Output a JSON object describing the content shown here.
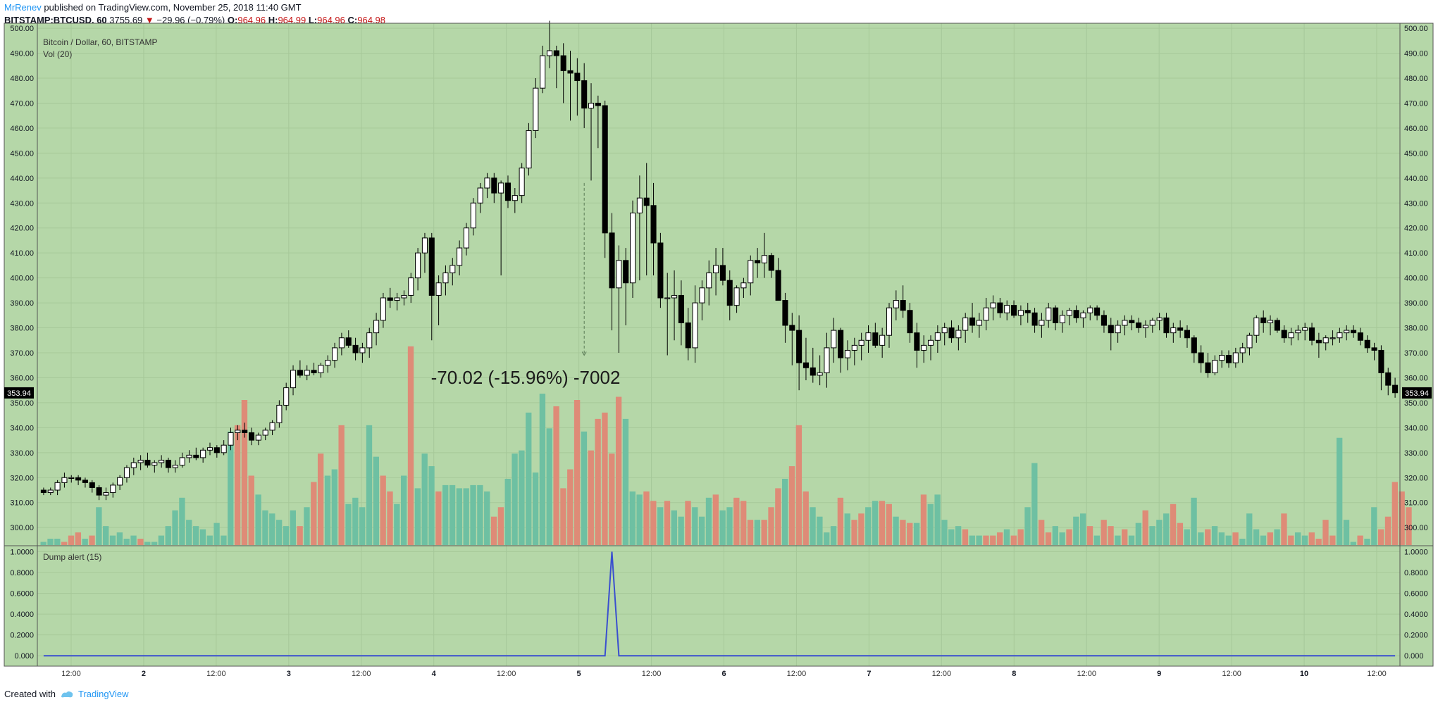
{
  "header": {
    "user": "MrRenev",
    "published": "published on TradingView.com, November 25, 2018 11:40 GMT",
    "symbol": "BITSTAMP:BTCUSD, 60",
    "price": "3755.69",
    "arrow": "▼",
    "change": "−29.96 (−0.79%)",
    "o_label": "O:",
    "o_value": "964.96",
    "h_label": "H:",
    "h_value": "964.99",
    "l_label": "L:",
    "l_value": "964.96",
    "c_label": "C:",
    "c_value": "964.98"
  },
  "footer": {
    "created": "Created with",
    "brand": "TradingView",
    "logo_icon": "tradingview-logo-icon"
  },
  "colors": {
    "background": "#b5d7a8",
    "grid": "#a6c899",
    "up_volume": "#6ec0a2",
    "down_volume": "#de8b77",
    "candle_up": "#ffffff",
    "candle_down": "#000000",
    "indicator_line": "#3a4fcf",
    "price_tag": "#000000"
  },
  "chart_data": {
    "type": "candlestick",
    "title": "Bitcoin / Dollar, 60, BITSTAMP",
    "volume_label": "Vol (20)",
    "indicator_label": "Dump alert (15)",
    "last_price_tag": "353.94",
    "annotation": "-70.02 (-15.96%) -7002",
    "price_axis": {
      "ylim": [
        293,
        502
      ],
      "ticks": [
        "500.00",
        "490.00",
        "480.00",
        "470.00",
        "460.00",
        "450.00",
        "440.00",
        "430.00",
        "420.00",
        "410.00",
        "400.00",
        "390.00",
        "380.00",
        "370.00",
        "360.00",
        "350.00",
        "340.00",
        "330.00",
        "320.00",
        "310.00",
        "300.00"
      ]
    },
    "indicator_axis": {
      "ylim": [
        -0.1,
        1.05
      ],
      "ticks": [
        "1.0000",
        "0.8000",
        "0.6000",
        "0.4000",
        "0.2000",
        "0.000"
      ]
    },
    "x_ticks": [
      "12:00",
      "2",
      "12:00",
      "3",
      "12:00",
      "4",
      "12:00",
      "5",
      "12:00",
      "6",
      "12:00",
      "7",
      "12:00",
      "8",
      "12:00",
      "9",
      "12:00",
      "10",
      "12:00"
    ],
    "candles_ohlc": [
      [
        315,
        316,
        313,
        314
      ],
      [
        314,
        316,
        313,
        315
      ],
      [
        315,
        319,
        313,
        318
      ],
      [
        318,
        322,
        316,
        320
      ],
      [
        320,
        321,
        318,
        320
      ],
      [
        320,
        321,
        317,
        319
      ],
      [
        319,
        320,
        316,
        318
      ],
      [
        318,
        319,
        314,
        316
      ],
      [
        316,
        317,
        311,
        313
      ],
      [
        313,
        316,
        311,
        314
      ],
      [
        314,
        318,
        312,
        317
      ],
      [
        317,
        321,
        315,
        320
      ],
      [
        320,
        325,
        318,
        324
      ],
      [
        324,
        328,
        321,
        326
      ],
      [
        326,
        329,
        323,
        327
      ],
      [
        327,
        330,
        324,
        325
      ],
      [
        325,
        327,
        322,
        326
      ],
      [
        326,
        329,
        324,
        327
      ],
      [
        327,
        328,
        322,
        324
      ],
      [
        324,
        327,
        322,
        325
      ],
      [
        325,
        330,
        324,
        328
      ],
      [
        328,
        331,
        326,
        329
      ],
      [
        329,
        332,
        327,
        328
      ],
      [
        328,
        332,
        326,
        331
      ],
      [
        331,
        334,
        329,
        332
      ],
      [
        332,
        333,
        328,
        330
      ],
      [
        330,
        335,
        329,
        333
      ],
      [
        333,
        340,
        331,
        338
      ],
      [
        338,
        341,
        335,
        339
      ],
      [
        339,
        342,
        336,
        338
      ],
      [
        338,
        340,
        333,
        335
      ],
      [
        335,
        338,
        333,
        337
      ],
      [
        337,
        340,
        335,
        339
      ],
      [
        339,
        343,
        337,
        342
      ],
      [
        342,
        351,
        340,
        349
      ],
      [
        349,
        358,
        347,
        356
      ],
      [
        356,
        365,
        353,
        363
      ],
      [
        363,
        367,
        360,
        361
      ],
      [
        361,
        365,
        359,
        363
      ],
      [
        363,
        366,
        361,
        362
      ],
      [
        362,
        366,
        360,
        365
      ],
      [
        365,
        369,
        362,
        367
      ],
      [
        367,
        374,
        364,
        372
      ],
      [
        372,
        378,
        369,
        376
      ],
      [
        376,
        379,
        372,
        373
      ],
      [
        373,
        376,
        367,
        370
      ],
      [
        370,
        374,
        366,
        372
      ],
      [
        372,
        380,
        368,
        378
      ],
      [
        378,
        386,
        373,
        383
      ],
      [
        383,
        394,
        380,
        392
      ],
      [
        392,
        396,
        388,
        391
      ],
      [
        391,
        394,
        387,
        392
      ],
      [
        392,
        395,
        389,
        393
      ],
      [
        393,
        402,
        390,
        400
      ],
      [
        400,
        412,
        395,
        410
      ],
      [
        410,
        418,
        402,
        416
      ],
      [
        416,
        418,
        375,
        393
      ],
      [
        393,
        401,
        381,
        398
      ],
      [
        398,
        405,
        393,
        402
      ],
      [
        402,
        408,
        397,
        405
      ],
      [
        405,
        415,
        401,
        412
      ],
      [
        412,
        422,
        409,
        420
      ],
      [
        420,
        432,
        417,
        430
      ],
      [
        430,
        438,
        426,
        436
      ],
      [
        436,
        442,
        432,
        440
      ],
      [
        440,
        442,
        430,
        434
      ],
      [
        434,
        439,
        401,
        438
      ],
      [
        438,
        441,
        428,
        431
      ],
      [
        431,
        436,
        426,
        433
      ],
      [
        433,
        446,
        430,
        444
      ],
      [
        444,
        462,
        441,
        459
      ],
      [
        459,
        480,
        456,
        476
      ],
      [
        476,
        493,
        474,
        489
      ],
      [
        489,
        503,
        484,
        491
      ],
      [
        491,
        493,
        476,
        489
      ],
      [
        489,
        494,
        470,
        483
      ],
      [
        483,
        491,
        463,
        482
      ],
      [
        482,
        488,
        465,
        479
      ],
      [
        479,
        486,
        460,
        468
      ],
      [
        468,
        478,
        439,
        470
      ],
      [
        470,
        473,
        452,
        469
      ],
      [
        469,
        471,
        408,
        418
      ],
      [
        418,
        426,
        379,
        396
      ],
      [
        396,
        413,
        370,
        407
      ],
      [
        407,
        412,
        381,
        398
      ],
      [
        398,
        431,
        392,
        426
      ],
      [
        426,
        441,
        399,
        432
      ],
      [
        432,
        446,
        401,
        429
      ],
      [
        429,
        438,
        401,
        414
      ],
      [
        414,
        418,
        388,
        392
      ],
      [
        392,
        402,
        369,
        392
      ],
      [
        392,
        403,
        375,
        393
      ],
      [
        393,
        399,
        373,
        382
      ],
      [
        382,
        388,
        367,
        372
      ],
      [
        372,
        397,
        366,
        390
      ],
      [
        390,
        399,
        383,
        396
      ],
      [
        396,
        407,
        389,
        402
      ],
      [
        402,
        412,
        393,
        405
      ],
      [
        405,
        412,
        397,
        399
      ],
      [
        399,
        403,
        383,
        389
      ],
      [
        389,
        397,
        386,
        396
      ],
      [
        396,
        400,
        392,
        398
      ],
      [
        398,
        409,
        393,
        407
      ],
      [
        407,
        412,
        400,
        406
      ],
      [
        406,
        418,
        400,
        409
      ],
      [
        409,
        410,
        400,
        403
      ],
      [
        403,
        408,
        393,
        391
      ],
      [
        391,
        394,
        374,
        381
      ],
      [
        381,
        386,
        365,
        379
      ],
      [
        379,
        385,
        355,
        366
      ],
      [
        366,
        376,
        359,
        364
      ],
      [
        364,
        372,
        358,
        361
      ],
      [
        361,
        369,
        357,
        362
      ],
      [
        362,
        378,
        356,
        372
      ],
      [
        372,
        384,
        366,
        379
      ],
      [
        379,
        380,
        362,
        368
      ],
      [
        368,
        375,
        363,
        371
      ],
      [
        371,
        376,
        365,
        373
      ],
      [
        373,
        378,
        367,
        375
      ],
      [
        375,
        381,
        370,
        378
      ],
      [
        378,
        382,
        372,
        373
      ],
      [
        373,
        380,
        368,
        377
      ],
      [
        377,
        390,
        372,
        388
      ],
      [
        388,
        395,
        383,
        391
      ],
      [
        391,
        397,
        384,
        387
      ],
      [
        387,
        390,
        374,
        378
      ],
      [
        378,
        382,
        364,
        371
      ],
      [
        371,
        377,
        366,
        373
      ],
      [
        373,
        377,
        367,
        375
      ],
      [
        375,
        381,
        370,
        378
      ],
      [
        378,
        382,
        373,
        380
      ],
      [
        380,
        383,
        374,
        376
      ],
      [
        376,
        381,
        371,
        379
      ],
      [
        379,
        386,
        374,
        384
      ],
      [
        384,
        390,
        378,
        381
      ],
      [
        381,
        386,
        376,
        383
      ],
      [
        383,
        392,
        379,
        388
      ],
      [
        388,
        393,
        383,
        390
      ],
      [
        390,
        392,
        384,
        386
      ],
      [
        386,
        391,
        383,
        389
      ],
      [
        389,
        391,
        384,
        385
      ],
      [
        385,
        389,
        381,
        387
      ],
      [
        387,
        390,
        382,
        386
      ],
      [
        386,
        388,
        378,
        381
      ],
      [
        381,
        386,
        376,
        383
      ],
      [
        383,
        390,
        380,
        388
      ],
      [
        388,
        389,
        379,
        382
      ],
      [
        382,
        387,
        378,
        385
      ],
      [
        385,
        388,
        381,
        387
      ],
      [
        387,
        389,
        382,
        384
      ],
      [
        384,
        387,
        380,
        386
      ],
      [
        386,
        389,
        383,
        388
      ],
      [
        388,
        389,
        383,
        385
      ],
      [
        385,
        387,
        378,
        381
      ],
      [
        381,
        384,
        371,
        378
      ],
      [
        378,
        383,
        374,
        381
      ],
      [
        381,
        385,
        377,
        383
      ],
      [
        383,
        385,
        379,
        382
      ],
      [
        382,
        384,
        378,
        380
      ],
      [
        380,
        383,
        376,
        381
      ],
      [
        381,
        384,
        378,
        383
      ],
      [
        383,
        386,
        379,
        384
      ],
      [
        384,
        386,
        376,
        378
      ],
      [
        378,
        382,
        374,
        380
      ],
      [
        380,
        383,
        376,
        379
      ],
      [
        379,
        381,
        372,
        376
      ],
      [
        376,
        377,
        366,
        370
      ],
      [
        370,
        373,
        362,
        366
      ],
      [
        366,
        370,
        360,
        362
      ],
      [
        362,
        369,
        361,
        367
      ],
      [
        367,
        371,
        364,
        369
      ],
      [
        369,
        371,
        364,
        366
      ],
      [
        366,
        372,
        364,
        370
      ],
      [
        370,
        374,
        366,
        372
      ],
      [
        372,
        378,
        369,
        377
      ],
      [
        377,
        385,
        374,
        384
      ],
      [
        384,
        387,
        378,
        382
      ],
      [
        382,
        385,
        377,
        383
      ],
      [
        383,
        384,
        378,
        379
      ],
      [
        379,
        381,
        374,
        376
      ],
      [
        376,
        380,
        373,
        378
      ],
      [
        378,
        381,
        375,
        379
      ],
      [
        379,
        382,
        375,
        380
      ],
      [
        380,
        382,
        373,
        375
      ],
      [
        375,
        378,
        368,
        374
      ],
      [
        374,
        377,
        371,
        376
      ],
      [
        376,
        379,
        373,
        376
      ],
      [
        376,
        380,
        374,
        378
      ],
      [
        378,
        381,
        375,
        379
      ],
      [
        379,
        381,
        376,
        378
      ],
      [
        378,
        380,
        373,
        375
      ],
      [
        375,
        377,
        370,
        372
      ],
      [
        372,
        374,
        367,
        371
      ],
      [
        371,
        373,
        355,
        362
      ],
      [
        362,
        364,
        353,
        357
      ],
      [
        357,
        360,
        352,
        354
      ]
    ],
    "volume": [
      1,
      2,
      2,
      1,
      3,
      4,
      2,
      3,
      12,
      6,
      3,
      4,
      2,
      3,
      2,
      1,
      1,
      3,
      6,
      11,
      15,
      8,
      6,
      5,
      3,
      7,
      3,
      36,
      38,
      46,
      22,
      16,
      11,
      10,
      8,
      6,
      11,
      6,
      12,
      20,
      29,
      22,
      24,
      38,
      13,
      15,
      12,
      38,
      28,
      22,
      17,
      13,
      22,
      63,
      18,
      29,
      25,
      17,
      19,
      19,
      18,
      18,
      19,
      19,
      17,
      9,
      12,
      21,
      29,
      30,
      42,
      23,
      48,
      37,
      44,
      18,
      24,
      46,
      36,
      30,
      40,
      42,
      29,
      47,
      40,
      17,
      16,
      17,
      14,
      12,
      14,
      11,
      9,
      14,
      12,
      9,
      15,
      16,
      11,
      12,
      15,
      14,
      8,
      8,
      8,
      12,
      18,
      21,
      25,
      38,
      17,
      12,
      9,
      4,
      6,
      15,
      10,
      8,
      10,
      12,
      14,
      14,
      13,
      9,
      8,
      7,
      7,
      16,
      13,
      16,
      8,
      5,
      6,
      5,
      3,
      3,
      3,
      3,
      4,
      5,
      3,
      5,
      12,
      26,
      8,
      4,
      6,
      4,
      5,
      9,
      10,
      6,
      3,
      8,
      6,
      3,
      5,
      3,
      7,
      11,
      6,
      8,
      10,
      13,
      7,
      5,
      15,
      4,
      5,
      6,
      4,
      3,
      4,
      2,
      10,
      5,
      3,
      4,
      5,
      10,
      3,
      4,
      3,
      4,
      2,
      8,
      3,
      34,
      8,
      1,
      3,
      2,
      12,
      5,
      9,
      20,
      17,
      12
    ],
    "volume_up": [
      true,
      true,
      true,
      false,
      false,
      false,
      true,
      false,
      true,
      true,
      true,
      true,
      true,
      true,
      false,
      true,
      true,
      true,
      true,
      true,
      true,
      true,
      true,
      true,
      true,
      true,
      true,
      true,
      false,
      false,
      false,
      true,
      true,
      true,
      true,
      true,
      true,
      false,
      true,
      false,
      false,
      true,
      true,
      false,
      true,
      true,
      true,
      true,
      true,
      false,
      false,
      true,
      true,
      false,
      true,
      true,
      true,
      false,
      true,
      true,
      true,
      true,
      true,
      true,
      true,
      false,
      false,
      true,
      true,
      true,
      true,
      true,
      true,
      true,
      false,
      false,
      false,
      false,
      true,
      false,
      false,
      false,
      false,
      false,
      true,
      true,
      true,
      false,
      false,
      true,
      false,
      true,
      true,
      false,
      true,
      true,
      true,
      false,
      true,
      true,
      false,
      false,
      false,
      true,
      false,
      false,
      false,
      true,
      false,
      false,
      false,
      true,
      true,
      true,
      true,
      false,
      true,
      false,
      false,
      true,
      true,
      false,
      false,
      true,
      false,
      false,
      true,
      false,
      true,
      true,
      true,
      true,
      true,
      false,
      true,
      true,
      false,
      false,
      false,
      true,
      false,
      false,
      true,
      true,
      false,
      false,
      true,
      true,
      false,
      true,
      true,
      false,
      true,
      false,
      false,
      true,
      false,
      true,
      true,
      false,
      true,
      true,
      true,
      false,
      false,
      true,
      true,
      true,
      false,
      true,
      true,
      true,
      false,
      true,
      true,
      true,
      true,
      false,
      true,
      false,
      false,
      true,
      true,
      false,
      false,
      false,
      false,
      true,
      true,
      true,
      false,
      true,
      true,
      false
    ],
    "dump_alert": {
      "values_start": 0,
      "spike_index": 82,
      "spike_value": 1.0
    }
  }
}
